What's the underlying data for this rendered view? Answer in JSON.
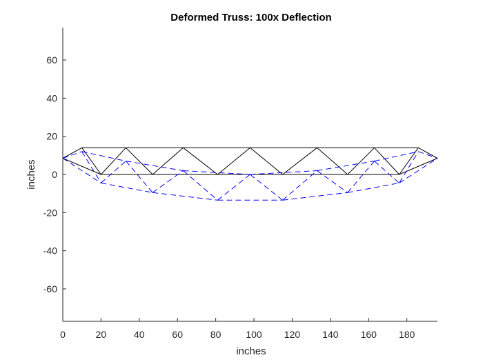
{
  "chart_data": {
    "type": "line",
    "title": "Deformed Truss: 100x Deflection",
    "xlabel": "inches",
    "ylabel": "inches",
    "xlim": [
      0,
      196
    ],
    "ylim": [
      -77,
      77
    ],
    "xticks": [
      0,
      20,
      40,
      60,
      80,
      100,
      120,
      140,
      160,
      180
    ],
    "yticks": [
      -60,
      -40,
      -20,
      0,
      20,
      40,
      60
    ],
    "grid": false,
    "legend": "none",
    "series": [
      {
        "role": "original",
        "color": "#000000",
        "style": "solid",
        "segments": [
          [
            [
              0,
              8.5
            ],
            [
              10,
              14
            ]
          ],
          [
            [
              10,
              14
            ],
            [
              186,
              14
            ]
          ],
          [
            [
              186,
              14
            ],
            [
              196,
              8.5
            ]
          ],
          [
            [
              0,
              8.5
            ],
            [
              20,
              0
            ]
          ],
          [
            [
              20,
              0
            ],
            [
              176,
              0
            ]
          ],
          [
            [
              176,
              0
            ],
            [
              196,
              8.5
            ]
          ],
          [
            [
              10,
              14
            ],
            [
              20,
              0
            ]
          ],
          [
            [
              20,
              0
            ],
            [
              33,
              14
            ]
          ],
          [
            [
              33,
              14
            ],
            [
              47,
              0
            ]
          ],
          [
            [
              47,
              0
            ],
            [
              63,
              14
            ]
          ],
          [
            [
              63,
              14
            ],
            [
              81,
              0
            ]
          ],
          [
            [
              81,
              0
            ],
            [
              98,
              14
            ]
          ],
          [
            [
              98,
              14
            ],
            [
              115,
              0
            ]
          ],
          [
            [
              115,
              0
            ],
            [
              133,
              14
            ]
          ],
          [
            [
              133,
              14
            ],
            [
              149,
              0
            ]
          ],
          [
            [
              149,
              0
            ],
            [
              163,
              14
            ]
          ],
          [
            [
              163,
              14
            ],
            [
              176,
              0
            ]
          ],
          [
            [
              176,
              0
            ],
            [
              186,
              14
            ]
          ]
        ]
      },
      {
        "role": "deformed",
        "color": "#0000ff",
        "style": "dashed",
        "segments": [
          [
            [
              0,
              8.5
            ],
            [
              10,
              12
            ]
          ],
          [
            [
              10,
              12
            ],
            [
              33,
              7
            ]
          ],
          [
            [
              33,
              7
            ],
            [
              63,
              2
            ]
          ],
          [
            [
              63,
              2
            ],
            [
              98,
              0
            ]
          ],
          [
            [
              98,
              0
            ],
            [
              133,
              2
            ]
          ],
          [
            [
              133,
              2
            ],
            [
              163,
              7
            ]
          ],
          [
            [
              163,
              7
            ],
            [
              186,
              12
            ]
          ],
          [
            [
              186,
              12
            ],
            [
              196,
              8.5
            ]
          ],
          [
            [
              0,
              8.5
            ],
            [
              20,
              -4.5
            ]
          ],
          [
            [
              20,
              -4.5
            ],
            [
              47,
              -9.5
            ]
          ],
          [
            [
              47,
              -9.5
            ],
            [
              81,
              -13.5
            ]
          ],
          [
            [
              81,
              -13.5
            ],
            [
              115,
              -13.5
            ]
          ],
          [
            [
              115,
              -13.5
            ],
            [
              149,
              -9.5
            ]
          ],
          [
            [
              149,
              -9.5
            ],
            [
              176,
              -4.5
            ]
          ],
          [
            [
              176,
              -4.5
            ],
            [
              196,
              8.5
            ]
          ],
          [
            [
              10,
              12
            ],
            [
              20,
              -4.5
            ]
          ],
          [
            [
              20,
              -4.5
            ],
            [
              33,
              7
            ]
          ],
          [
            [
              33,
              7
            ],
            [
              47,
              -9.5
            ]
          ],
          [
            [
              47,
              -9.5
            ],
            [
              63,
              2
            ]
          ],
          [
            [
              63,
              2
            ],
            [
              81,
              -13.5
            ]
          ],
          [
            [
              81,
              -13.5
            ],
            [
              98,
              0
            ]
          ],
          [
            [
              98,
              0
            ],
            [
              115,
              -13.5
            ]
          ],
          [
            [
              115,
              -13.5
            ],
            [
              133,
              2
            ]
          ],
          [
            [
              133,
              2
            ],
            [
              149,
              -9.5
            ]
          ],
          [
            [
              149,
              -9.5
            ],
            [
              163,
              7
            ]
          ],
          [
            [
              163,
              7
            ],
            [
              176,
              -4.5
            ]
          ],
          [
            [
              176,
              -4.5
            ],
            [
              186,
              12
            ]
          ]
        ]
      }
    ]
  }
}
